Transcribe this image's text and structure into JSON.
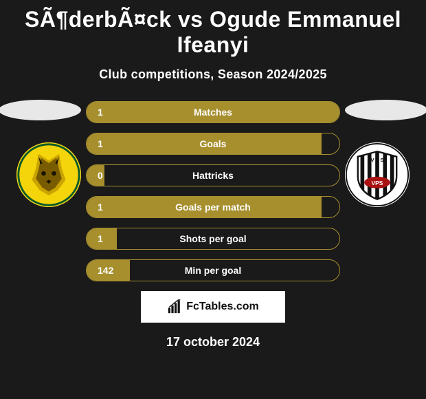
{
  "title": "SÃ¶derbÃ¤ck vs Ogude Emmanuel Ifeanyi",
  "subtitle": "Club competitions, Season 2024/2025",
  "date": "17 october 2024",
  "attribution": {
    "text": "FcTables.com"
  },
  "colors": {
    "accent": "#a78f2e",
    "bg": "#1a1a1a",
    "ellipse": "#e8e8e8",
    "attribution_bg": "#ffffff",
    "text": "#ffffff",
    "attribution_text": "#111111"
  },
  "logos": {
    "left": {
      "name": "Ilves",
      "bg": "#f4d40a",
      "ring": "#0a5a2a"
    },
    "right": {
      "name": "VPS",
      "bg": "#ffffff"
    }
  },
  "stats": [
    {
      "label": "Matches",
      "left_value": "1",
      "fill_pct": 100
    },
    {
      "label": "Goals",
      "left_value": "1",
      "fill_pct": 93
    },
    {
      "label": "Hattricks",
      "left_value": "0",
      "fill_pct": 7
    },
    {
      "label": "Goals per match",
      "left_value": "1",
      "fill_pct": 93
    },
    {
      "label": "Shots per goal",
      "left_value": "1",
      "fill_pct": 12
    },
    {
      "label": "Min per goal",
      "left_value": "142",
      "fill_pct": 17
    }
  ]
}
